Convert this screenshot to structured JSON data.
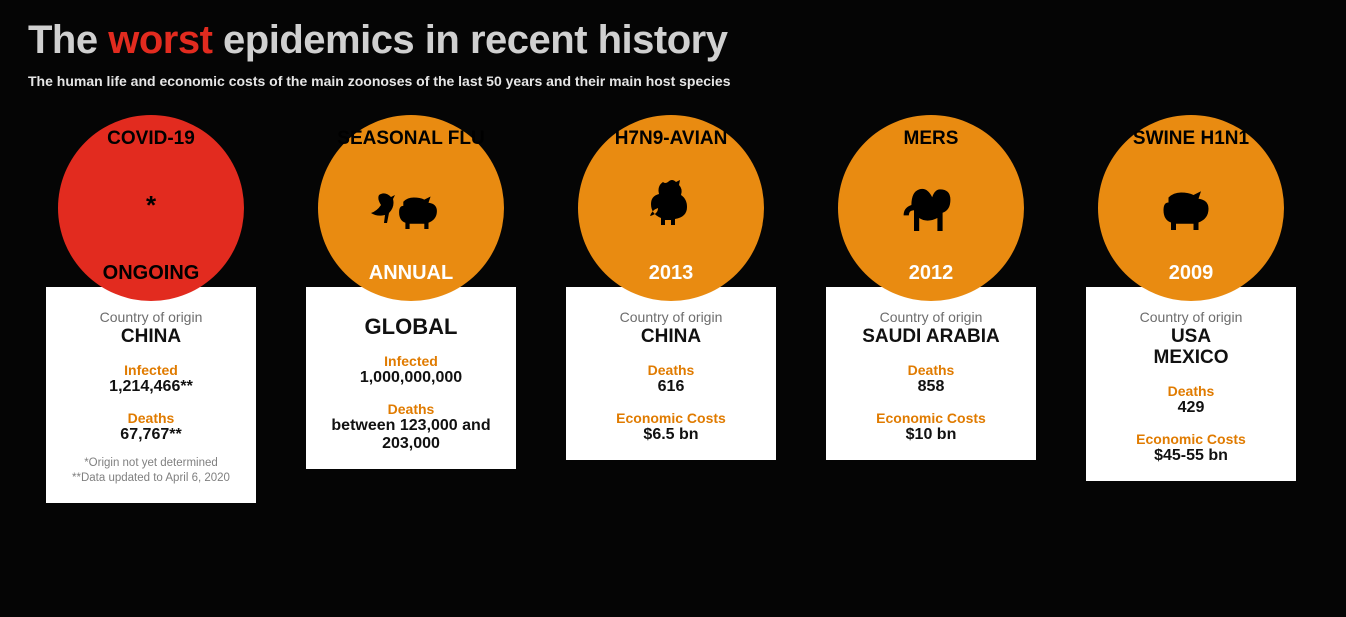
{
  "title_pre": "The ",
  "title_accent": "worst",
  "title_post": " epidemics in recent history",
  "accent_color": "#e22b1f",
  "subtitle": "The human life and economic costs of the main zoonoses of the last 50 years and their main host species",
  "circle_orange": "#e98b11",
  "circle_red": "#e22b1f",
  "label_origin": "Country of origin",
  "cards": [
    {
      "name": "COVID-19",
      "year": "ONGOING",
      "year_dark": true,
      "circle_color": "#e22b1f",
      "icon": "star",
      "origin_label": true,
      "origin": "CHINA",
      "stats": [
        {
          "label": "Infected",
          "value": "1,214,466**"
        },
        {
          "label": "Deaths",
          "value": "67,767**"
        }
      ],
      "footnotes": [
        "*Origin not yet determined",
        "**Data updated to April 6, 2020"
      ]
    },
    {
      "name": "SEASONAL FLU",
      "year": "ANNUAL",
      "year_dark": false,
      "circle_color": "#e98b11",
      "icon": "bird-pig",
      "origin_label": false,
      "origin": "GLOBAL",
      "stats": [
        {
          "label": "Infected",
          "value": "1,000,000,000"
        },
        {
          "label": "Deaths",
          "value": "between 123,000 and 203,000"
        }
      ],
      "footnotes": []
    },
    {
      "name": "H7N9-AVIAN",
      "year": "2013",
      "year_dark": false,
      "circle_color": "#e98b11",
      "icon": "rooster",
      "origin_label": true,
      "origin": "CHINA",
      "stats": [
        {
          "label": "Deaths",
          "value": "616"
        },
        {
          "label": "Economic Costs",
          "value": "$6.5 bn"
        }
      ],
      "footnotes": []
    },
    {
      "name": "MERS",
      "year": "2012",
      "year_dark": false,
      "circle_color": "#e98b11",
      "icon": "camel",
      "origin_label": true,
      "origin": "SAUDI ARABIA",
      "stats": [
        {
          "label": "Deaths",
          "value": "858"
        },
        {
          "label": "Economic Costs",
          "value": "$10 bn"
        }
      ],
      "footnotes": []
    },
    {
      "name": "SWINE H1N1",
      "year": "2009",
      "year_dark": false,
      "circle_color": "#e98b11",
      "icon": "pig",
      "origin_label": true,
      "origin": "USA\nMEXICO",
      "stats": [
        {
          "label": "Deaths",
          "value": "429"
        },
        {
          "label": "Economic Costs",
          "value": "$45-55 bn"
        }
      ],
      "footnotes": []
    }
  ]
}
